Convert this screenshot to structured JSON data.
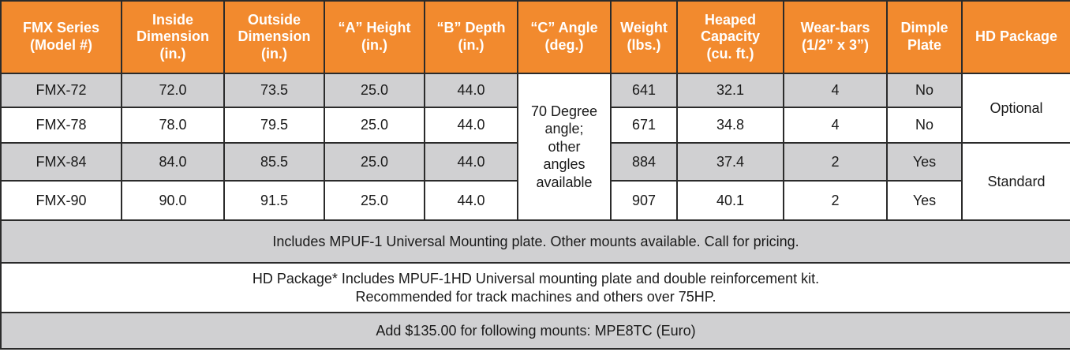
{
  "table": {
    "header": [
      [
        "FMX Series",
        "(Model #)"
      ],
      [
        "Inside",
        "Dimension",
        "(in.)"
      ],
      [
        "Outside",
        "Dimension",
        "(in.)"
      ],
      [
        "“A” Height",
        "(in.)"
      ],
      [
        "“B” Depth",
        "(in.)"
      ],
      [
        "“C” Angle",
        "(deg.)"
      ],
      [
        "Weight",
        "(lbs.)"
      ],
      [
        "Heaped",
        "Capacity",
        "(cu. ft.)"
      ],
      [
        "Wear-bars",
        "(1/2” x 3”)"
      ],
      [
        "Dimple",
        "Plate"
      ],
      [
        "HD Package"
      ]
    ],
    "rows": [
      [
        "FMX-72",
        "72.0",
        "73.5",
        "25.0",
        "44.0",
        "641",
        "32.1",
        "4",
        "No"
      ],
      [
        "FMX-78",
        "78.0",
        "79.5",
        "25.0",
        "44.0",
        "671",
        "34.8",
        "4",
        "No"
      ],
      [
        "FMX-84",
        "84.0",
        "85.5",
        "25.0",
        "44.0",
        "884",
        "37.4",
        "2",
        "Yes"
      ],
      [
        "FMX-90",
        "90.0",
        "91.5",
        "25.0",
        "44.0",
        "907",
        "40.1",
        "2",
        "Yes"
      ]
    ],
    "angle": [
      "70 Degree",
      "angle;",
      "other",
      "angles",
      "available"
    ],
    "hd_package": [
      "Optional",
      "Standard"
    ],
    "notes": [
      [
        "Includes MPUF-1 Universal Mounting plate. Other mounts available. Call for pricing."
      ],
      [
        "HD Package* Includes MPUF-1HD Universal mounting plate and double reinforcement kit.",
        "Recommended for track machines and others over 75HP."
      ],
      [
        "Add $135.00 for following mounts: MPE8TC (Euro)"
      ]
    ]
  }
}
